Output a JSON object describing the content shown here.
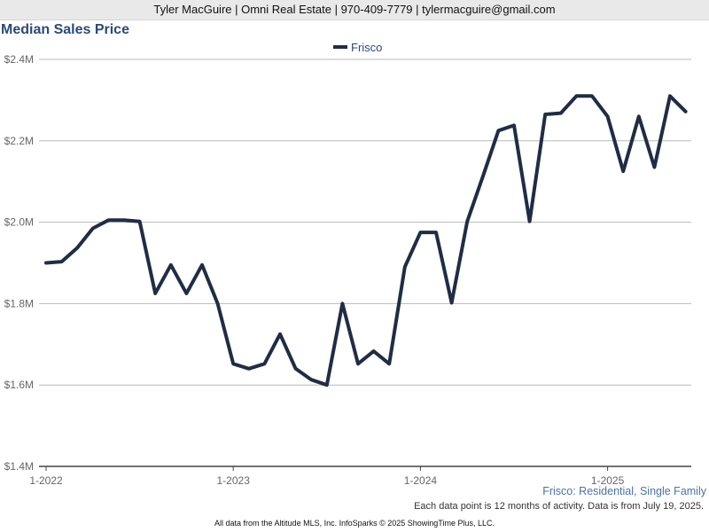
{
  "header": {
    "contact_line": "Tyler MacGuire | Omni Real Estate | 970-409-7779 | tylermacguire@gmail.com"
  },
  "colors": {
    "title": "#2a4a78",
    "line": "#1f2d45",
    "subtitle": "#4a72a8",
    "grid": "#b9b9b9"
  },
  "chart_data": {
    "type": "line",
    "title": "Median Sales Price",
    "xlabel": "",
    "ylabel": "",
    "ylim": [
      1400000,
      2400000
    ],
    "yticks": [
      1400000,
      1600000,
      1800000,
      2000000,
      2200000,
      2400000
    ],
    "ytick_labels": [
      "$1.4M",
      "$1.6M",
      "$1.8M",
      "$2.0M",
      "$2.2M",
      "$2.4M"
    ],
    "xticks": [
      "1-2022",
      "1-2023",
      "1-2024",
      "1-2025"
    ],
    "grid": true,
    "legend_position": "top-center",
    "x": [
      "2022-01",
      "2022-02",
      "2022-03",
      "2022-04",
      "2022-05",
      "2022-06",
      "2022-07",
      "2022-08",
      "2022-09",
      "2022-10",
      "2022-11",
      "2022-12",
      "2023-01",
      "2023-02",
      "2023-03",
      "2023-04",
      "2023-05",
      "2023-06",
      "2023-07",
      "2023-08",
      "2023-09",
      "2023-10",
      "2023-11",
      "2023-12",
      "2024-01",
      "2024-02",
      "2024-03",
      "2024-04",
      "2024-05",
      "2024-06",
      "2024-07",
      "2024-08",
      "2024-09",
      "2024-10",
      "2024-11",
      "2024-12",
      "2025-01",
      "2025-02",
      "2025-03",
      "2025-04",
      "2025-05",
      "2025-06"
    ],
    "series": [
      {
        "name": "Frisco",
        "values": [
          1900000,
          1903000,
          1937000,
          1985000,
          2005000,
          2005000,
          2002000,
          1825000,
          1895000,
          1825000,
          1895000,
          1800000,
          1652000,
          1640000,
          1652000,
          1725000,
          1640000,
          1613000,
          1600000,
          1800000,
          1652000,
          1683000,
          1652000,
          1890000,
          1975000,
          1975000,
          1802000,
          2002000,
          2112000,
          2225000,
          2238000,
          2002000,
          2265000,
          2268000,
          2310000,
          2310000,
          2260000,
          2125000,
          2260000,
          2135000,
          2310000,
          2272000
        ]
      }
    ],
    "subtitle": "Frisco: Residential, Single Family",
    "note": "Each data point is 12 months of activity. Data is from July 19, 2025."
  },
  "footer": {
    "text": "All data from the Altitude MLS, Inc. InfoSparks © 2025 ShowingTime Plus, LLC."
  }
}
